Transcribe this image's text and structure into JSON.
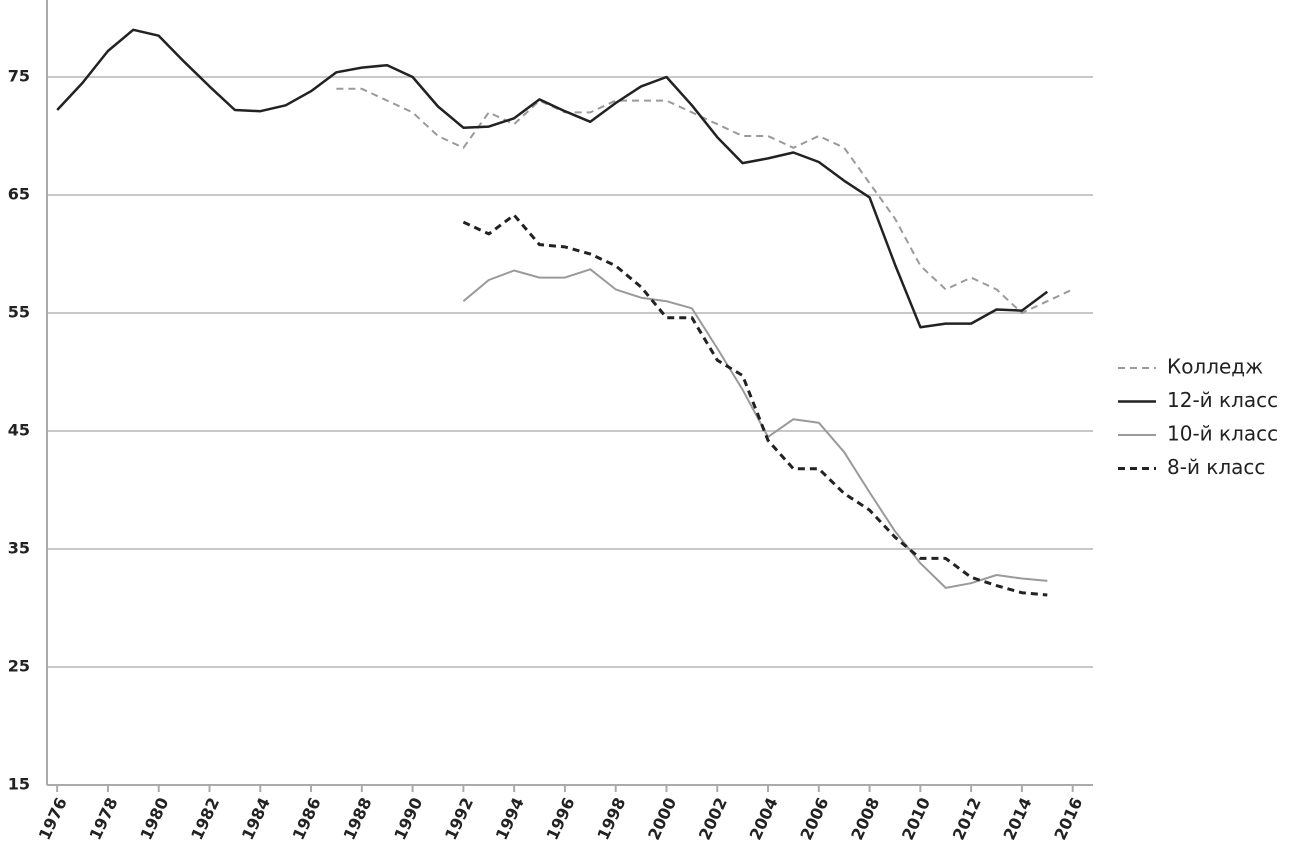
{
  "chart_data": {
    "type": "line",
    "x": [
      1976,
      1977,
      1978,
      1979,
      1980,
      1981,
      1982,
      1983,
      1984,
      1985,
      1986,
      1987,
      1988,
      1989,
      1990,
      1991,
      1992,
      1993,
      1994,
      1995,
      1996,
      1997,
      1998,
      1999,
      2000,
      2001,
      2002,
      2003,
      2004,
      2005,
      2006,
      2007,
      2008,
      2009,
      2010,
      2011,
      2012,
      2013,
      2014,
      2015,
      2016
    ],
    "series": [
      {
        "name": "Колледж",
        "color": "#9a9a9a",
        "dashed": true,
        "width": 2,
        "values": [
          null,
          null,
          null,
          null,
          null,
          null,
          null,
          null,
          null,
          null,
          null,
          74,
          74,
          73,
          72,
          70,
          69,
          72,
          71,
          73,
          72,
          72,
          73,
          73,
          73,
          72,
          71,
          70,
          70,
          69,
          70,
          69,
          66,
          63,
          59,
          57,
          58,
          57,
          55,
          56,
          57
        ]
      },
      {
        "name": "12-й класс",
        "color": "#222222",
        "dashed": false,
        "width": 2.5,
        "values": [
          72.2,
          74.5,
          77.2,
          79,
          78.5,
          76.3,
          74.2,
          72.2,
          72.1,
          72.6,
          73.8,
          75.4,
          75.8,
          76,
          75,
          72.5,
          70.7,
          70.8,
          71.5,
          73.1,
          72.1,
          71.2,
          72.8,
          74.2,
          75,
          72.6,
          69.9,
          67.7,
          68.1,
          68.6,
          67.8,
          66.2,
          64.8,
          59.1,
          53.8,
          54.1,
          54.1,
          55.3,
          55.2,
          56.8,
          null
        ]
      },
      {
        "name": "10-й класс",
        "color": "#9a9a9a",
        "dashed": false,
        "width": 2,
        "values": [
          null,
          null,
          null,
          null,
          null,
          null,
          null,
          null,
          null,
          null,
          null,
          null,
          null,
          null,
          null,
          null,
          56,
          57.8,
          58.6,
          58,
          58,
          58.7,
          57,
          56.3,
          56,
          55.4,
          52,
          48.5,
          44.5,
          46,
          45.7,
          43.2,
          39.8,
          36.5,
          33.8,
          31.7,
          32.1,
          32.8,
          32.5,
          32.3,
          null
        ]
      },
      {
        "name": "8-й класс",
        "color": "#222222",
        "dashed": true,
        "width": 3,
        "values": [
          null,
          null,
          null,
          null,
          null,
          null,
          null,
          null,
          null,
          null,
          null,
          null,
          null,
          null,
          null,
          null,
          62.7,
          61.7,
          63.3,
          60.8,
          60.6,
          60,
          59,
          57.2,
          54.6,
          54.6,
          51,
          49.7,
          44.2,
          41.8,
          41.8,
          39.7,
          38.3,
          36,
          34.2,
          34.2,
          32.6,
          31.9,
          31.3,
          31.1,
          null
        ]
      }
    ],
    "xlim": [
      1975.6,
      2016.8
    ],
    "ylim": [
      15,
      81.5
    ],
    "xticks": [
      1976,
      1978,
      1980,
      1982,
      1984,
      1986,
      1988,
      1990,
      1992,
      1994,
      1996,
      1998,
      2000,
      2002,
      2004,
      2006,
      2008,
      2010,
      2012,
      2014,
      2016
    ],
    "yticks": [
      15,
      25,
      35,
      45,
      55,
      65,
      75
    ],
    "grid": true,
    "legend": "right"
  }
}
